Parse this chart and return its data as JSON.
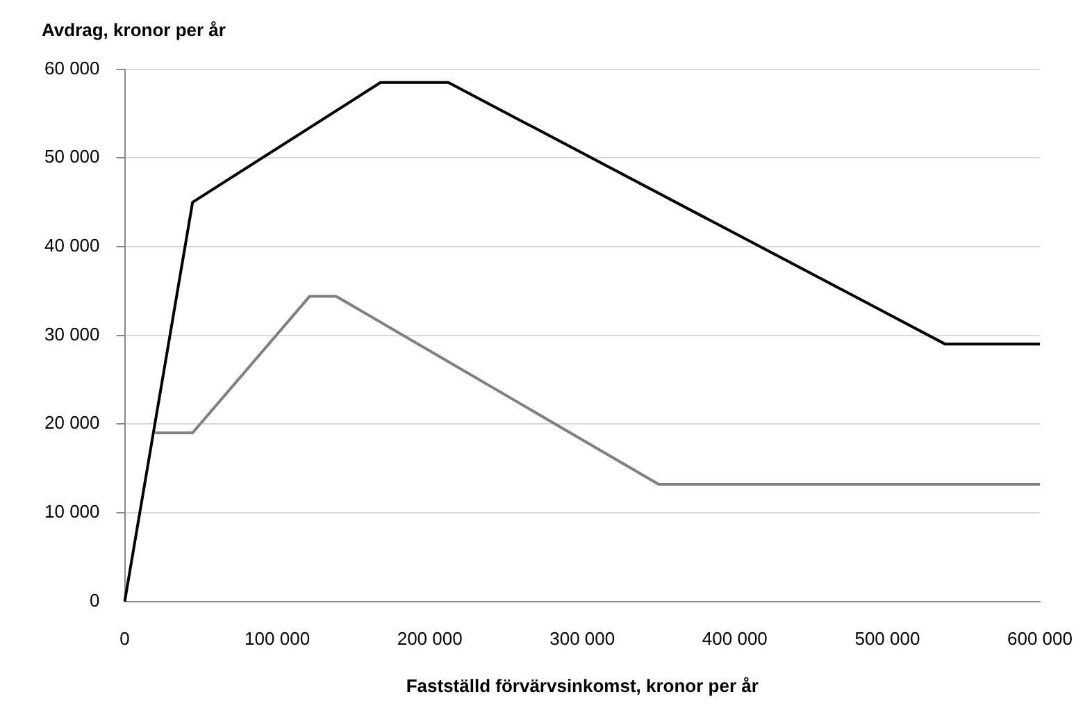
{
  "chart_data": {
    "type": "line",
    "ylabel": "Avdrag, kronor per år",
    "xlabel": "Fastställd förvärvsinkomst, kronor per år",
    "series": [
      {
        "color": "#000000",
        "x": [
          0,
          44500,
          167700,
          212200,
          538000,
          600000
        ],
        "values": [
          0,
          45000,
          58500,
          58500,
          29000,
          29000
        ]
      },
      {
        "color": "#808080",
        "x": [
          20000,
          44500,
          121300,
          138600,
          350000,
          600000
        ],
        "values": [
          19000,
          19000,
          34400,
          34400,
          13200,
          13200
        ]
      }
    ],
    "xlim": [
      0,
      600000
    ],
    "xticks": [
      {
        "value": 0,
        "label": "0"
      },
      {
        "value": 100000,
        "label": "100 000"
      },
      {
        "value": 200000,
        "label": "200 000"
      },
      {
        "value": 300000,
        "label": "300 000"
      },
      {
        "value": 400000,
        "label": "400 000"
      },
      {
        "value": 500000,
        "label": "500 000"
      },
      {
        "value": 600000,
        "label": "600 000"
      }
    ],
    "ylim": [
      0,
      60000
    ],
    "yticks": [
      {
        "value": 0,
        "label": "0"
      },
      {
        "value": 10000,
        "label": "10 000"
      },
      {
        "value": 20000,
        "label": "20 000"
      },
      {
        "value": 30000,
        "label": "30 000"
      },
      {
        "value": 40000,
        "label": "40 000"
      },
      {
        "value": 50000,
        "label": "50 000"
      },
      {
        "value": 60000,
        "label": "60 000"
      }
    ],
    "grid": "y",
    "legend": false,
    "marker": "none",
    "line_style": "solid"
  }
}
